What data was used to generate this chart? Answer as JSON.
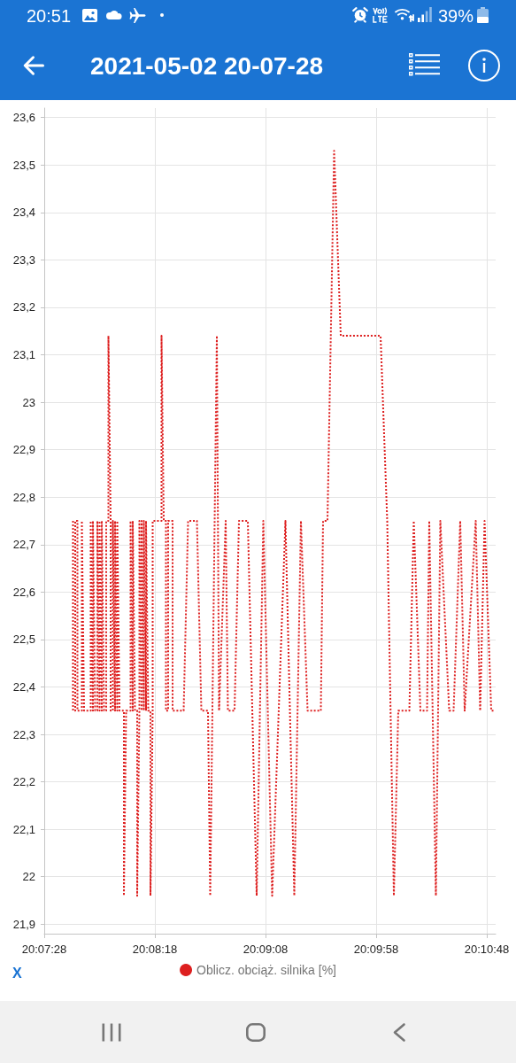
{
  "chart_data": {
    "type": "line",
    "title": "2021-05-02 20-07-28",
    "annotations": [
      "20:51",
      "39%",
      "X"
    ],
    "x": [
      "2021-05-02T20:07:41",
      "2021-05-02T20:07:41",
      "2021-05-02T20:07:42",
      "2021-05-02T20:07:42",
      "2021-05-02T20:07:43",
      "2021-05-02T20:07:43",
      "2021-05-02T20:07:45",
      "2021-05-02T20:07:45",
      "2021-05-02T20:07:46",
      "2021-05-02T20:07:49",
      "2021-05-02T20:07:49",
      "2021-05-02T20:07:50",
      "2021-05-02T20:07:50",
      "2021-05-02T20:07:51",
      "2021-05-02T20:07:52",
      "2021-05-02T20:07:52",
      "2021-05-02T20:07:53",
      "2021-05-02T20:07:53",
      "2021-05-02T20:07:54",
      "2021-05-02T20:07:54",
      "2021-05-02T20:07:55",
      "2021-05-02T20:07:56",
      "2021-05-02T20:07:56",
      "2021-05-02T20:07:57",
      "2021-05-02T20:07:57",
      "2021-05-02T20:07:58",
      "2021-05-02T20:07:58",
      "2021-05-02T20:07:59",
      "2021-05-02T20:07:59",
      "2021-05-02T20:08:00",
      "2021-05-02T20:08:00",
      "2021-05-02T20:08:01",
      "2021-05-02T20:08:01",
      "2021-05-02T20:08:02",
      "2021-05-02T20:08:04",
      "2021-05-02T20:08:04",
      "2021-05-02T20:08:05",
      "2021-05-02T20:08:07",
      "2021-05-02T20:08:07",
      "2021-05-02T20:08:08",
      "2021-05-02T20:08:08",
      "2021-05-02T20:08:09",
      "2021-05-02T20:08:10",
      "2021-05-02T20:08:10",
      "2021-05-02T20:08:11",
      "2021-05-02T20:08:11",
      "2021-05-02T20:08:12",
      "2021-05-02T20:08:12",
      "2021-05-02T20:08:13",
      "2021-05-02T20:08:13",
      "2021-05-02T20:08:14",
      "2021-05-02T20:08:14",
      "2021-05-02T20:08:15",
      "2021-05-02T20:08:16",
      "2021-05-02T20:08:16",
      "2021-05-02T20:08:17",
      "2021-05-02T20:08:17",
      "2021-05-02T20:08:21",
      "2021-05-02T20:08:21",
      "2021-05-02T20:08:22",
      "2021-05-02T20:08:23",
      "2021-05-02T20:08:23",
      "2021-05-02T20:08:24",
      "2021-05-02T20:08:24",
      "2021-05-02T20:08:26",
      "2021-05-02T20:08:26",
      "2021-05-02T20:08:31",
      "2021-05-02T20:08:33",
      "2021-05-02T20:08:37",
      "2021-05-02T20:08:39",
      "2021-05-02T20:08:42",
      "2021-05-02T20:08:43",
      "2021-05-02T20:08:46",
      "2021-05-02T20:08:47",
      "2021-05-02T20:08:50",
      "2021-05-02T20:08:51",
      "2021-05-02T20:08:54",
      "2021-05-02T20:08:56",
      "2021-05-02T20:09:00",
      "2021-05-02T20:09:04",
      "2021-05-02T20:09:07",
      "2021-05-02T20:09:11",
      "2021-05-02T20:09:17",
      "2021-05-02T20:09:21",
      "2021-05-02T20:09:24",
      "2021-05-02T20:09:27",
      "2021-05-02T20:09:33",
      "2021-05-02T20:09:34",
      "2021-05-02T20:09:36",
      "2021-05-02T20:09:39",
      "2021-05-02T20:09:42",
      "2021-05-02T20:10:00",
      "2021-05-02T20:10:03",
      "2021-05-02T20:10:06",
      "2021-05-02T20:10:08",
      "2021-05-02T20:10:13",
      "2021-05-02T20:10:15",
      "2021-05-02T20:10:18",
      "2021-05-02T20:10:21",
      "2021-05-02T20:10:22",
      "2021-05-02T20:10:25",
      "2021-05-02T20:10:27",
      "2021-05-02T20:10:31",
      "2021-05-02T20:10:33",
      "2021-05-02T20:10:36",
      "2021-05-02T20:10:38",
      "2021-05-02T20:10:43",
      "2021-05-02T20:10:45",
      "2021-05-02T20:10:47",
      "2021-05-02T20:10:50",
      "2021-05-02T20:10:51"
    ],
    "series": [
      {
        "name": "Oblicz. obciąż. silnika [%]",
        "color": "#dd1f1f",
        "values": [
          22.75,
          22.35,
          22.35,
          22.75,
          22.75,
          22.35,
          22.35,
          22.75,
          22.35,
          22.35,
          22.75,
          22.35,
          22.75,
          22.35,
          22.35,
          22.75,
          22.35,
          22.75,
          22.35,
          22.75,
          22.35,
          22.35,
          22.75,
          22.75,
          23.14,
          22.75,
          22.35,
          22.35,
          22.75,
          22.35,
          22.75,
          22.35,
          22.75,
          22.35,
          22.35,
          21.96,
          22.35,
          22.35,
          22.75,
          22.35,
          22.75,
          22.35,
          22.35,
          21.96,
          22.35,
          22.75,
          22.35,
          22.75,
          22.35,
          22.75,
          22.35,
          22.75,
          22.35,
          22.35,
          21.96,
          22.35,
          22.75,
          22.75,
          23.14,
          22.75,
          22.75,
          22.35,
          22.35,
          22.75,
          22.75,
          22.35,
          22.35,
          22.75,
          22.75,
          22.35,
          22.35,
          21.96,
          23.14,
          22.35,
          22.75,
          22.35,
          22.35,
          22.75,
          22.75,
          21.96,
          22.75,
          21.96,
          22.75,
          21.96,
          22.75,
          22.35,
          22.35,
          22.75,
          22.75,
          23.53,
          23.14,
          23.14,
          22.75,
          21.96,
          22.35,
          22.35,
          22.75,
          22.35,
          22.35,
          22.75,
          21.96,
          22.75,
          22.35,
          22.35,
          22.75,
          22.35,
          22.75,
          22.35,
          22.75,
          22.35,
          22.35
        ]
      }
    ],
    "xlim": [
      "2021-05-02T20:07:28",
      "2021-05-02T20:10:52"
    ],
    "xticks": [
      {
        "value": "2021-05-02T20:07:28",
        "label": "20:07:28"
      },
      {
        "value": "2021-05-02T20:08:18",
        "label": "20:08:18"
      },
      {
        "value": "2021-05-02T20:09:08",
        "label": "20:09:08"
      },
      {
        "value": "2021-05-02T20:09:58",
        "label": "20:09:58"
      },
      {
        "value": "2021-05-02T20:10:48",
        "label": "20:10:48"
      }
    ],
    "ylim": [
      21.88,
      23.62
    ],
    "yticks": [
      {
        "value": 21.9,
        "label": "21,9"
      },
      22,
      {
        "value": 22.1,
        "label": "22,1"
      },
      {
        "value": 22.2,
        "label": "22,2"
      },
      {
        "value": 22.3,
        "label": "22,3"
      },
      {
        "value": 22.4,
        "label": "22,4"
      },
      {
        "value": 22.5,
        "label": "22,5"
      },
      {
        "value": 22.6,
        "label": "22,6"
      },
      {
        "value": 22.7,
        "label": "22,7"
      },
      {
        "value": 22.8,
        "label": "22,8"
      },
      {
        "value": 22.9,
        "label": "22,9"
      },
      23,
      {
        "value": 23.1,
        "label": "23,1"
      },
      {
        "value": 23.2,
        "label": "23,2"
      },
      {
        "value": 23.3,
        "label": "23,3"
      },
      {
        "value": 23.4,
        "label": "23,4"
      },
      {
        "value": 23.5,
        "label": "23,5"
      },
      {
        "value": 23.6,
        "label": "23,6"
      }
    ],
    "grid": true,
    "legend": "bottom",
    "marker": "none",
    "line_style": "dotted"
  }
}
